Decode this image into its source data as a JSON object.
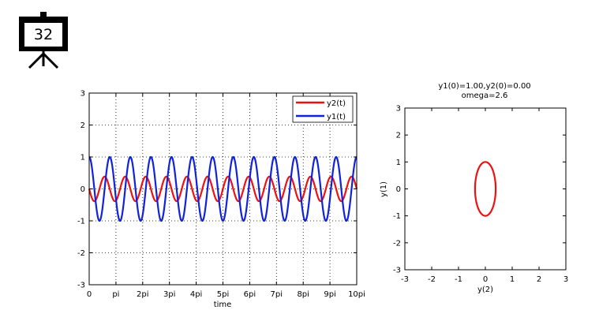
{
  "slide": {
    "number": "32",
    "icon": "projector-screen-icon"
  },
  "chart_data": [
    {
      "type": "line",
      "title": "",
      "xlabel": "time",
      "ylabel": "",
      "xlim": [
        0,
        31.416
      ],
      "ylim": [
        -3,
        3
      ],
      "x_ticks": [
        "0",
        "pi",
        "2pi",
        "3pi",
        "4pi",
        "5pi",
        "6pi",
        "7pi",
        "8pi",
        "9pi",
        "10pi"
      ],
      "y_ticks": [
        "-3",
        "-2",
        "-1",
        "0",
        "1",
        "2",
        "3"
      ],
      "grid": true,
      "grid_style": "dotted",
      "legend_position": "top-right",
      "omega": 2.6,
      "series": [
        {
          "name": "y2(t)",
          "color": "#ee1111",
          "function": "-sin(omega*t)/omega",
          "amplitude": 0.385
        },
        {
          "name": "y1(t)",
          "color": "#1122dd",
          "function": "cos(omega*t)",
          "amplitude": 1.0
        }
      ]
    },
    {
      "type": "line",
      "title": "y1(0)=1.00,y2(0)=0.00",
      "subtitle": "omega=2.6",
      "xlabel": "y(2)",
      "ylabel": "y(1)",
      "xlim": [
        -3,
        3
      ],
      "ylim": [
        -3,
        3
      ],
      "x_ticks": [
        "-3",
        "-2",
        "-1",
        "0",
        "1",
        "2",
        "3"
      ],
      "y_ticks": [
        "-3",
        "-2",
        "-1",
        "0",
        "1",
        "2",
        "3"
      ],
      "grid": false,
      "series": [
        {
          "name": "",
          "color": "#ee1111",
          "x_function": "-sin(omega*t)/omega",
          "y_function": "cos(omega*t)",
          "x_radius": 0.385,
          "y_radius": 1.0
        }
      ]
    }
  ]
}
